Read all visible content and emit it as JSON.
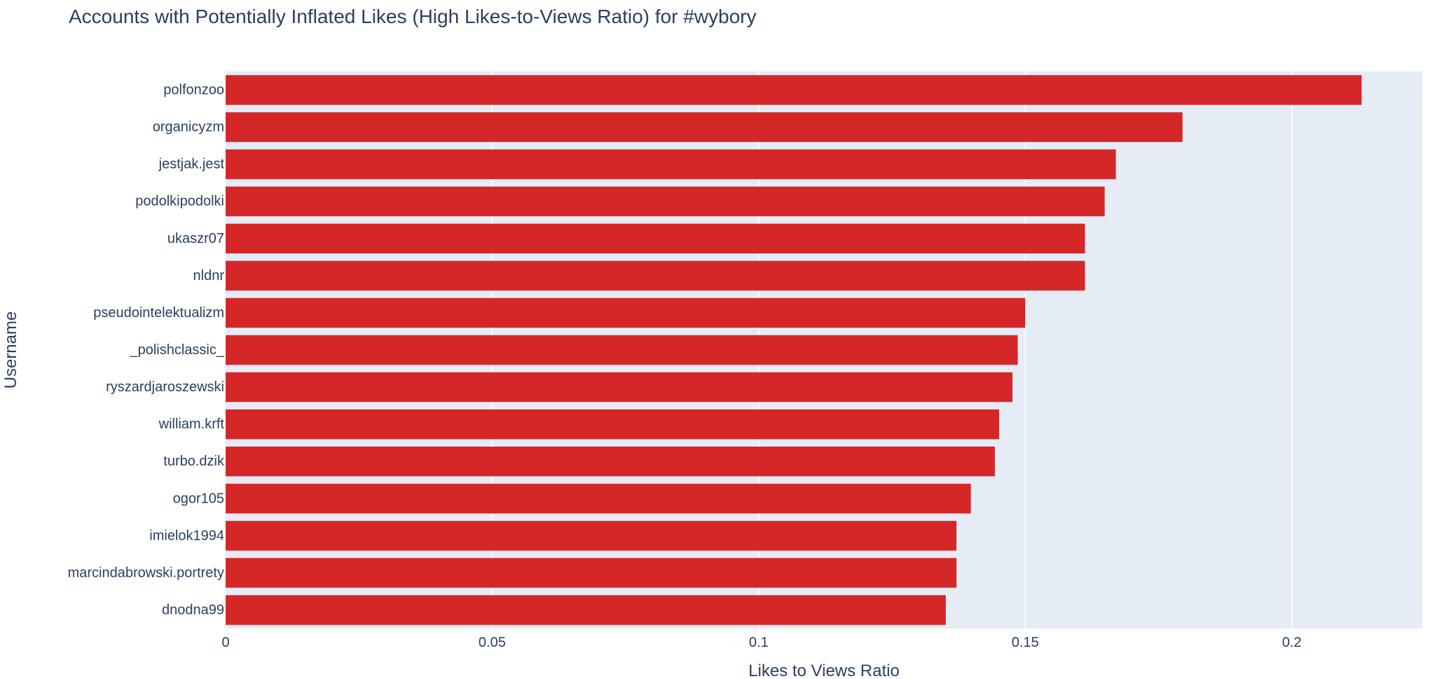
{
  "chart_data": {
    "type": "bar",
    "orientation": "horizontal",
    "title": "Accounts with Potentially Inflated Likes (High Likes-to-Views Ratio) for #wybory",
    "xlabel": "Likes to Views Ratio",
    "ylabel": "Username",
    "xlim": [
      0,
      0.2245
    ],
    "x_ticks": [
      {
        "value": 0,
        "label": "0"
      },
      {
        "value": 0.05,
        "label": "0.05"
      },
      {
        "value": 0.1,
        "label": "0.1"
      },
      {
        "value": 0.15,
        "label": "0.15"
      },
      {
        "value": 0.2,
        "label": "0.2"
      }
    ],
    "grid": true,
    "bar_color": "#d62728",
    "plot_background": "#e5ecf6",
    "categories": [
      "polfonzoo",
      "organicyzm",
      "jestjak.jest",
      "podolkipodolki",
      "ukaszr07",
      "nldnr",
      "pseudointelektualizm",
      "_polishclassic_",
      "ryszardjaroszewski",
      "william.krft",
      "turbo.dzik",
      "ogor105",
      "imielok1994",
      "marcindabrowski.portrety",
      "dnodna99"
    ],
    "values": [
      0.2131,
      0.1795,
      0.167,
      0.1649,
      0.1612,
      0.1612,
      0.15,
      0.1486,
      0.1476,
      0.1451,
      0.1443,
      0.1398,
      0.1371,
      0.1371,
      0.1351
    ]
  }
}
